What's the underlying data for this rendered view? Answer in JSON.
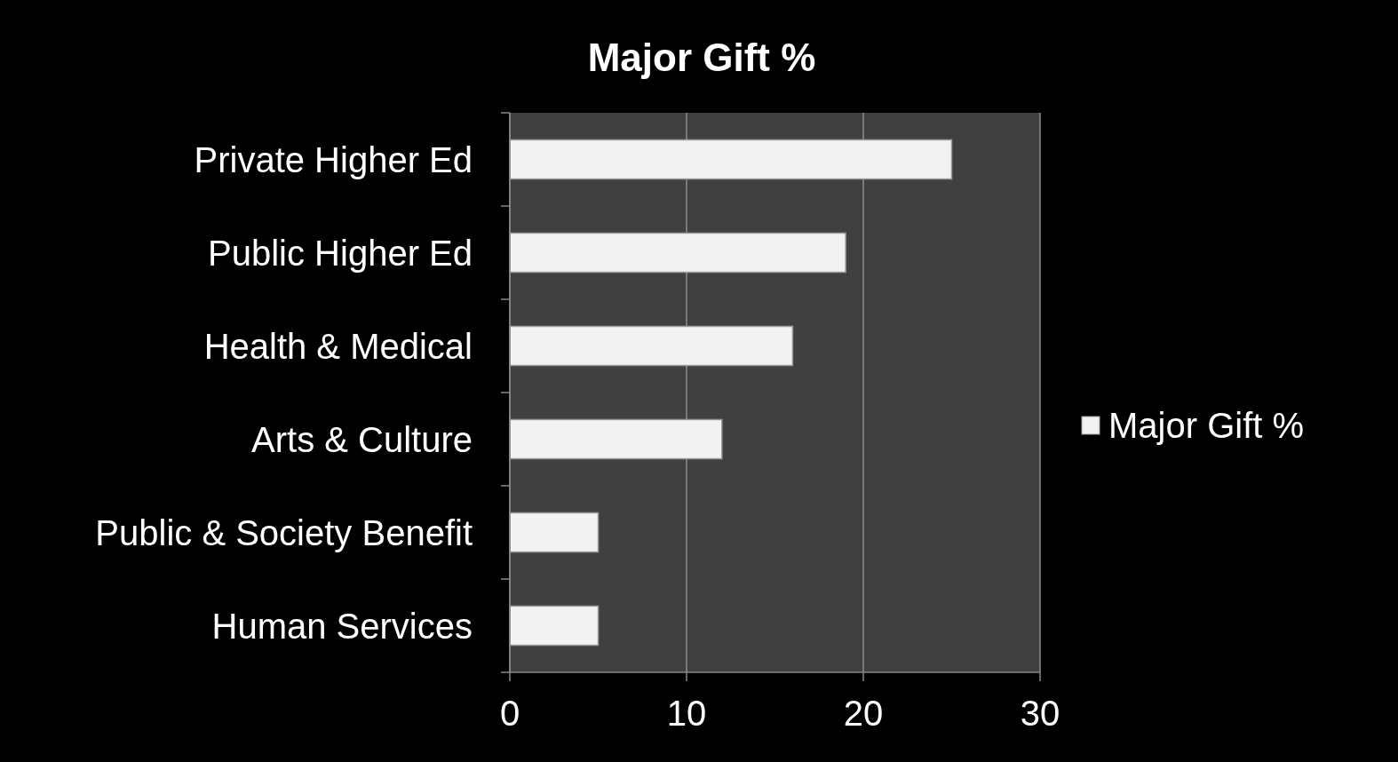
{
  "chart_data": {
    "type": "bar",
    "orientation": "horizontal",
    "title": "Major Gift %",
    "categories": [
      "Private Higher Ed",
      "Public Higher Ed",
      "Health & Medical",
      "Arts & Culture",
      "Public & Society Benefit",
      "Human Services"
    ],
    "series": [
      {
        "name": "Major Gift %",
        "color": "#f2f2f2",
        "values": [
          25,
          19,
          16,
          12,
          5,
          5
        ]
      }
    ],
    "xlim": [
      0,
      30
    ],
    "xticks": [
      0,
      10,
      20,
      30
    ],
    "grid": "x",
    "legend": "right"
  }
}
